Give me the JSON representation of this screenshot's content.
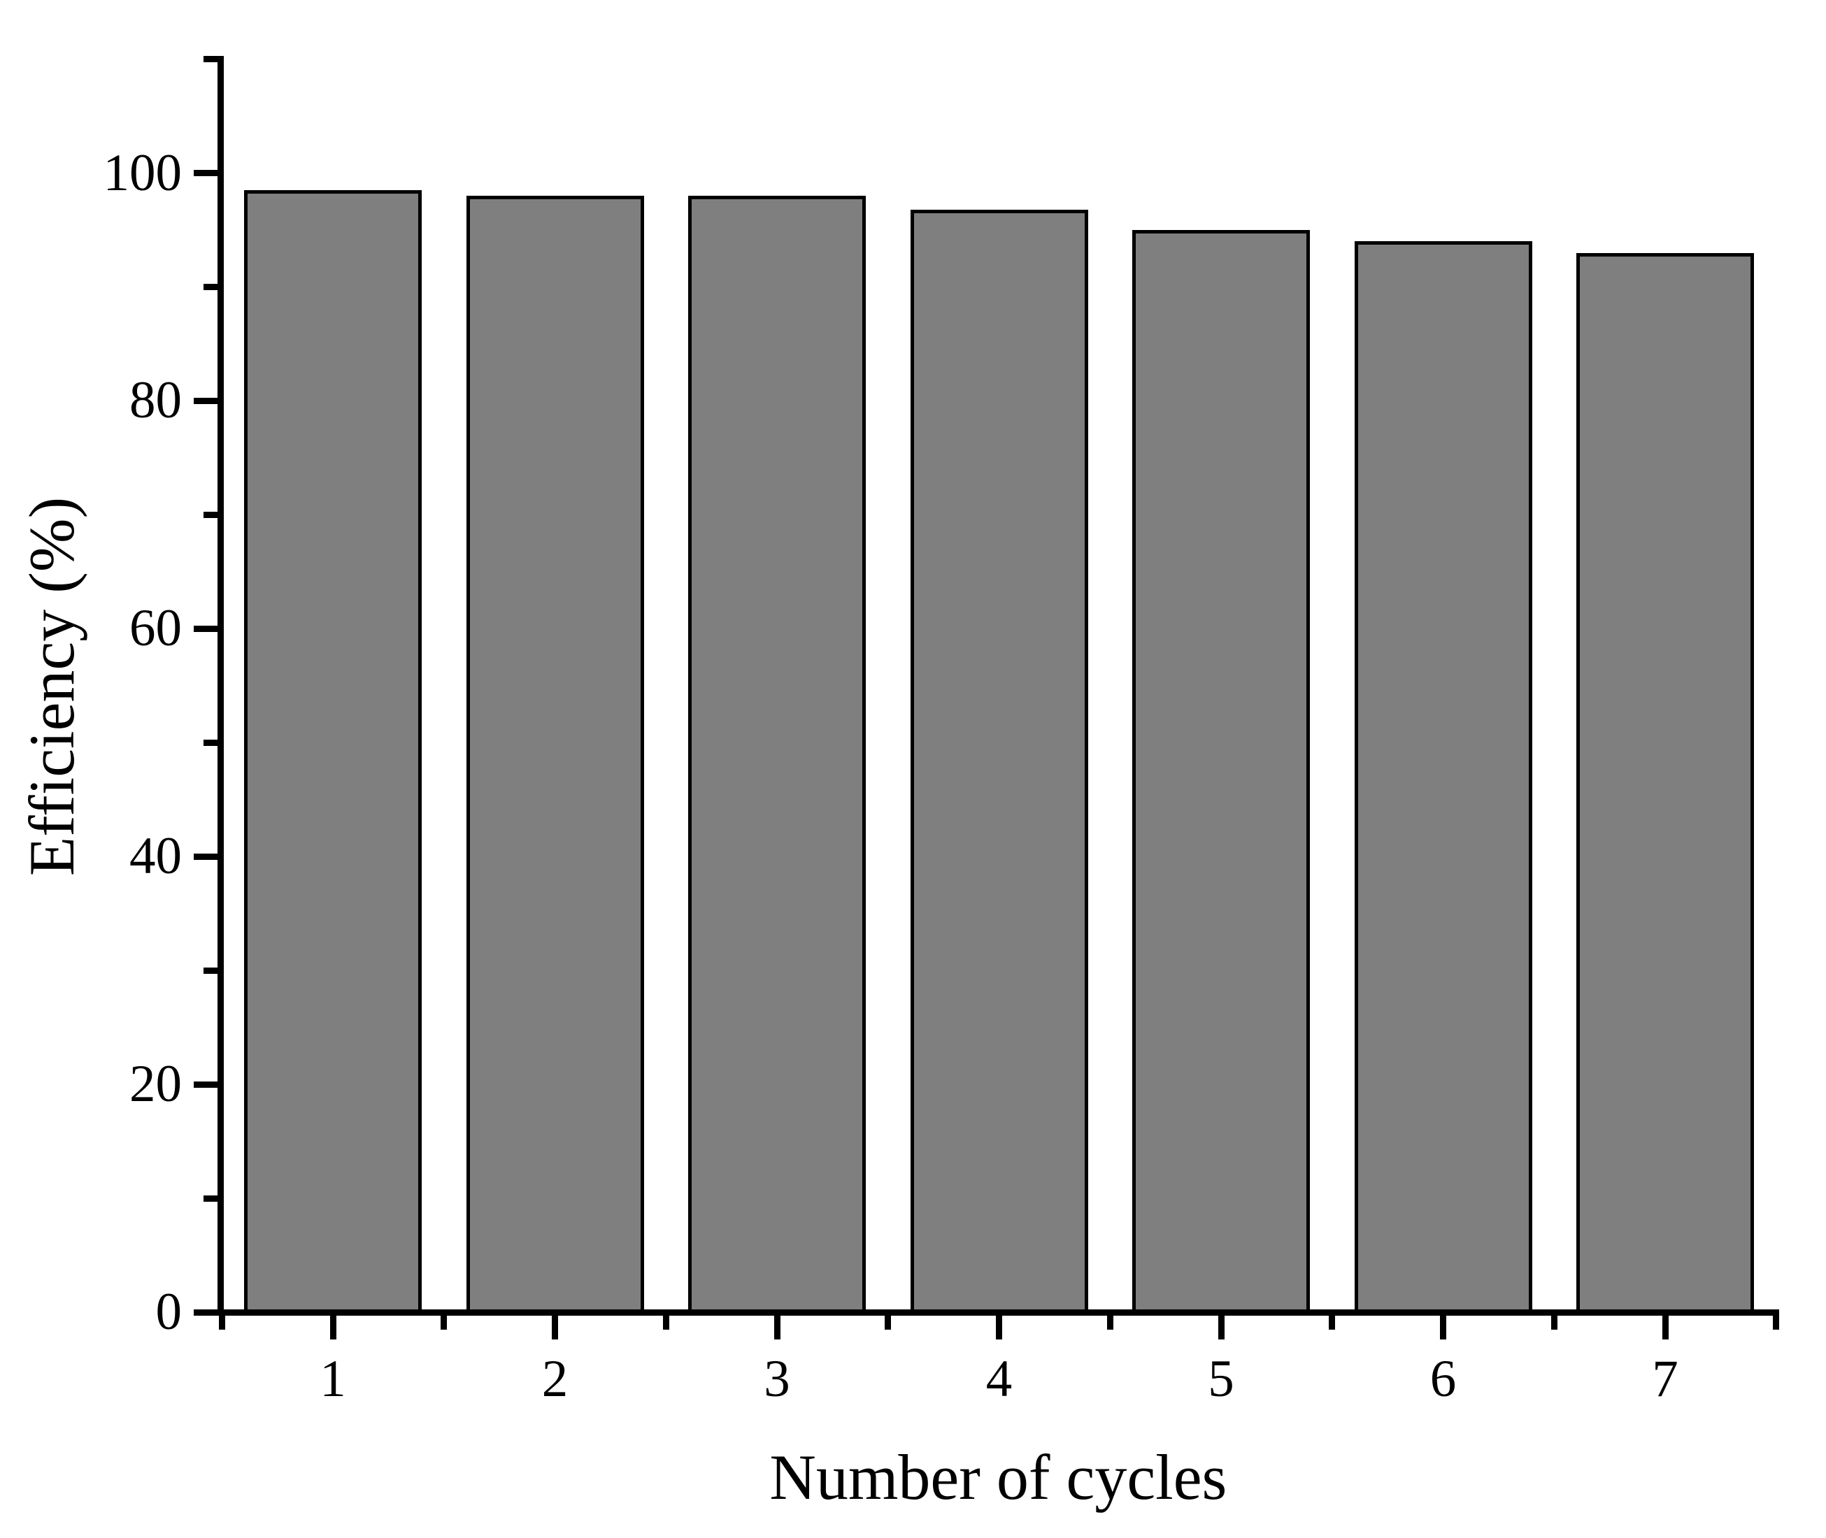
{
  "figure": {
    "background": "#ffffff",
    "axis_color": "#000000",
    "text_color": "#000000"
  },
  "chart_data": {
    "type": "bar",
    "title": "",
    "xlabel": "Number of cycles",
    "ylabel": "Efficiency (%)",
    "categories": [
      "1",
      "2",
      "3",
      "4",
      "5",
      "6",
      "7"
    ],
    "values": [
      98.5,
      98,
      98,
      96.8,
      95,
      94,
      93
    ],
    "ylim": [
      0,
      110
    ],
    "y_major_ticks": [
      0,
      20,
      40,
      60,
      80,
      100
    ],
    "y_tick_labels": [
      "0",
      "20",
      "40",
      "60",
      "80",
      "100"
    ],
    "y_minor_step": 10,
    "x_minor_positions": [
      0.5,
      1.5,
      2.5,
      3.5,
      4.5,
      5.5,
      6.5,
      7.5
    ],
    "grid": "off",
    "legend": "none",
    "bar_fill": "#7f7f7f",
    "bar_outline": "#000000"
  }
}
